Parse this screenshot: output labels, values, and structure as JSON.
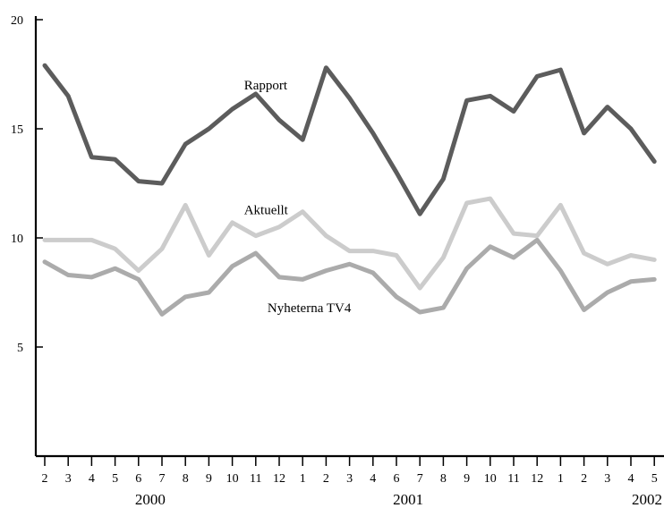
{
  "chart_data": {
    "type": "line",
    "title": "",
    "xlabel": "",
    "ylabel": "",
    "ylim": [
      0,
      20
    ],
    "yticks": [
      5,
      10,
      15,
      20
    ],
    "grid": false,
    "legend": "inline labels",
    "x": [
      "2",
      "3",
      "4",
      "5",
      "6",
      "7",
      "8",
      "9",
      "10",
      "11",
      "12",
      "1",
      "2",
      "3",
      "4",
      "6",
      "7",
      "8",
      "9",
      "10",
      "11",
      "12",
      "1",
      "2",
      "3",
      "4",
      "5"
    ],
    "years": [
      {
        "label": "2000",
        "index": 4.5
      },
      {
        "label": "2001",
        "index": 15.5
      },
      {
        "label": "2002",
        "index": 26
      }
    ],
    "series": [
      {
        "name": "Rapport",
        "color": "#5c5c5c",
        "label_index": 8.5,
        "label_value": 17.0,
        "values": [
          17.9,
          16.5,
          13.7,
          13.6,
          12.6,
          12.5,
          14.3,
          15.0,
          15.9,
          16.6,
          15.4,
          14.5,
          17.8,
          16.4,
          14.8,
          13.0,
          11.1,
          12.7,
          16.3,
          16.5,
          15.8,
          17.4,
          17.7,
          14.8,
          16.0,
          15.0,
          13.5
        ]
      },
      {
        "name": "Aktuellt",
        "color": "#cccccc",
        "label_index": 8.5,
        "label_value": 11.3,
        "values": [
          9.9,
          9.9,
          9.9,
          9.5,
          8.5,
          9.5,
          11.5,
          9.2,
          10.7,
          10.1,
          10.5,
          11.2,
          10.1,
          9.4,
          9.4,
          9.2,
          7.7,
          9.1,
          11.6,
          11.8,
          10.2,
          10.1,
          11.5,
          9.3,
          8.8,
          9.2,
          9.0
        ]
      },
      {
        "name": "Nyheterna TV4",
        "color": "#ababab",
        "label_index": 9.5,
        "label_value": 6.8,
        "values": [
          8.9,
          8.3,
          8.2,
          8.6,
          8.1,
          6.5,
          7.3,
          7.5,
          8.7,
          9.3,
          8.2,
          8.1,
          8.5,
          8.8,
          8.4,
          7.3,
          6.6,
          6.8,
          8.6,
          9.6,
          9.1,
          9.9,
          8.5,
          6.7,
          7.5,
          8.0,
          8.1
        ]
      }
    ]
  }
}
